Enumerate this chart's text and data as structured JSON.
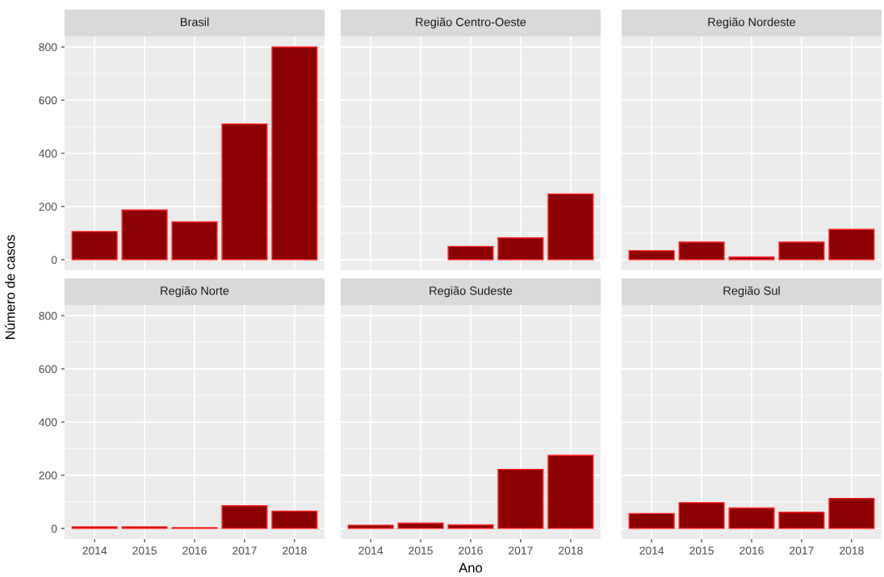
{
  "chart_data": [
    {
      "type": "bar",
      "title": "Brasil",
      "ylabel": "Número de casos",
      "categories": [
        "2014",
        "2015",
        "2016",
        "2017",
        "2018"
      ],
      "values": [
        106,
        187,
        142,
        510,
        800
      ],
      "color": "#8b0000",
      "ylim": [
        -40,
        840
      ],
      "yticks": [
        0,
        200,
        400,
        600,
        800
      ],
      "grid": true,
      "tick_labels": "y"
    },
    {
      "type": "bar",
      "title": "Região Centro-Oeste",
      "categories": [
        "2014",
        "2015",
        "2016",
        "2017",
        "2018"
      ],
      "values": [
        null,
        null,
        50,
        82,
        247
      ],
      "color": "#8b0000",
      "ylim": [
        -40,
        840
      ],
      "yticks": [
        0,
        200,
        400,
        600,
        800
      ],
      "grid": true,
      "tick_labels": false
    },
    {
      "type": "bar",
      "title": "Região Nordeste",
      "categories": [
        "2014",
        "2015",
        "2016",
        "2017",
        "2018"
      ],
      "values": [
        34,
        66,
        10,
        66,
        114
      ],
      "color": "#8b0000",
      "ylim": [
        -40,
        840
      ],
      "yticks": [
        0,
        200,
        400,
        600,
        800
      ],
      "grid": true,
      "tick_labels": false
    },
    {
      "type": "bar",
      "title": "Região Norte",
      "categories": [
        "2014",
        "2015",
        "2016",
        "2017",
        "2018"
      ],
      "values": [
        6,
        6,
        3,
        85,
        65
      ],
      "color": "#8b0000",
      "ylim": [
        -40,
        840
      ],
      "yticks": [
        0,
        200,
        400,
        600,
        800
      ],
      "grid": true
    },
    {
      "type": "bar",
      "title": "Região Sudeste",
      "xlabel": "Ano",
      "categories": [
        "2014",
        "2015",
        "2016",
        "2017",
        "2018"
      ],
      "values": [
        12,
        20,
        13,
        222,
        275
      ],
      "color": "#8b0000",
      "ylim": [
        -40,
        840
      ],
      "yticks": [
        0,
        200,
        400,
        600,
        800
      ],
      "grid": true,
      "tick_labels": "x"
    },
    {
      "type": "bar",
      "title": "Região Sul",
      "categories": [
        "2014",
        "2015",
        "2016",
        "2017",
        "2018"
      ],
      "values": [
        56,
        97,
        77,
        61,
        113
      ],
      "color": "#8b0000",
      "ylim": [
        -40,
        840
      ],
      "yticks": [
        0,
        200,
        400,
        600,
        800
      ],
      "grid": true,
      "tick_labels": "x"
    }
  ]
}
